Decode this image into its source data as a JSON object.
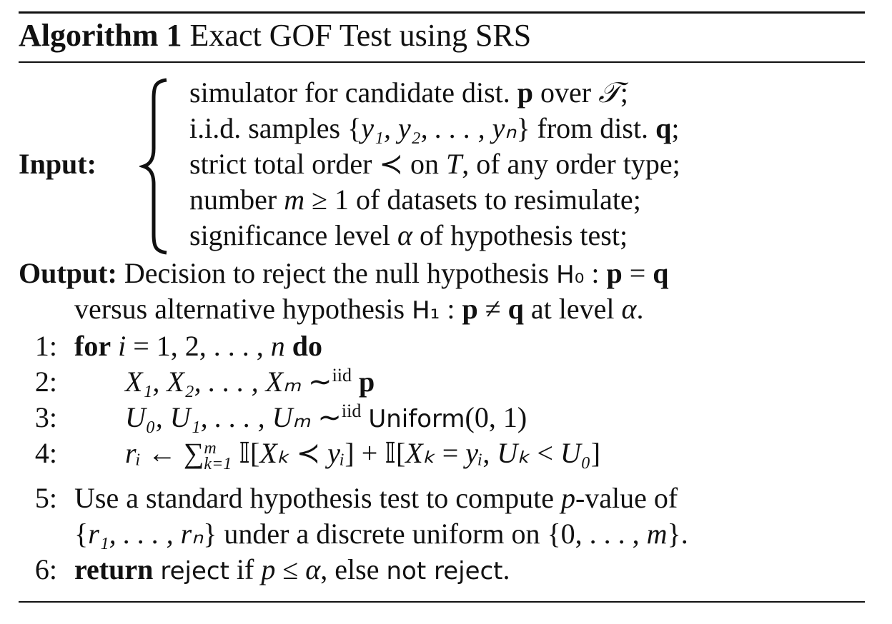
{
  "algorithm": {
    "label": "Algorithm 1",
    "title": "Exact GOF Test using SRS"
  },
  "input": {
    "label": "Input:",
    "lines": [
      [
        "simulator for candidate dist. ",
        "p",
        " over ",
        "𝒯",
        ";"
      ],
      [
        "i.i.d. samples {",
        "y₁, y₂, . . . , yₙ",
        "} from dist. ",
        "q",
        ";"
      ],
      [
        "strict total order ≺ on ",
        "T",
        ", of any order type;"
      ],
      [
        "number ",
        "m",
        " ≥ 1 of datasets to resimulate;"
      ],
      [
        "significance level ",
        "α",
        " of hypothesis test;"
      ]
    ]
  },
  "output": {
    "label": "Output:",
    "lines": [
      [
        "Decision to reject the null hypothesis ",
        "H₀",
        " : ",
        "p",
        " = ",
        "q"
      ],
      [
        "versus alternative hypothesis ",
        "H₁",
        " : ",
        "p",
        " ≠ ",
        "q",
        " at level ",
        "α",
        "."
      ]
    ]
  },
  "steps": [
    {
      "number": "1:",
      "lines": [
        [
          "for",
          "i",
          " = 1, 2, . . . , ",
          "n",
          "do"
        ]
      ]
    },
    {
      "number": "2:",
      "lines": [
        [
          "X₁, X₂, . . . , Xₘ",
          " ∼",
          "iid",
          "p"
        ]
      ]
    },
    {
      "number": "3:",
      "lines": [
        [
          "U₀, U₁, . . . , Uₘ",
          " ∼",
          "iid",
          "Uniform",
          "(0, 1)"
        ]
      ]
    },
    {
      "number": "4:",
      "lines": [
        [
          "rᵢ",
          " ← ∑",
          "m",
          "k=1",
          " 𝕀[",
          "Xₖ",
          " ≺ ",
          "yᵢ",
          "] + 𝕀[",
          "Xₖ",
          " = ",
          "yᵢ",
          ", ",
          "Uₖ",
          " < ",
          "U₀",
          "]"
        ]
      ]
    },
    {
      "number": "5:",
      "lines": [
        [
          "Use a standard hypothesis test to compute ",
          "p",
          "-value of"
        ],
        [
          "{",
          "r₁, . . . , rₙ",
          "} under a discrete uniform on {0, . . . , ",
          "m",
          "}."
        ]
      ]
    },
    {
      "number": "6:",
      "lines": [
        [
          "return",
          "reject",
          " if ",
          "p",
          " ≤ ",
          "α",
          ", else ",
          "not reject",
          "."
        ]
      ]
    }
  ]
}
